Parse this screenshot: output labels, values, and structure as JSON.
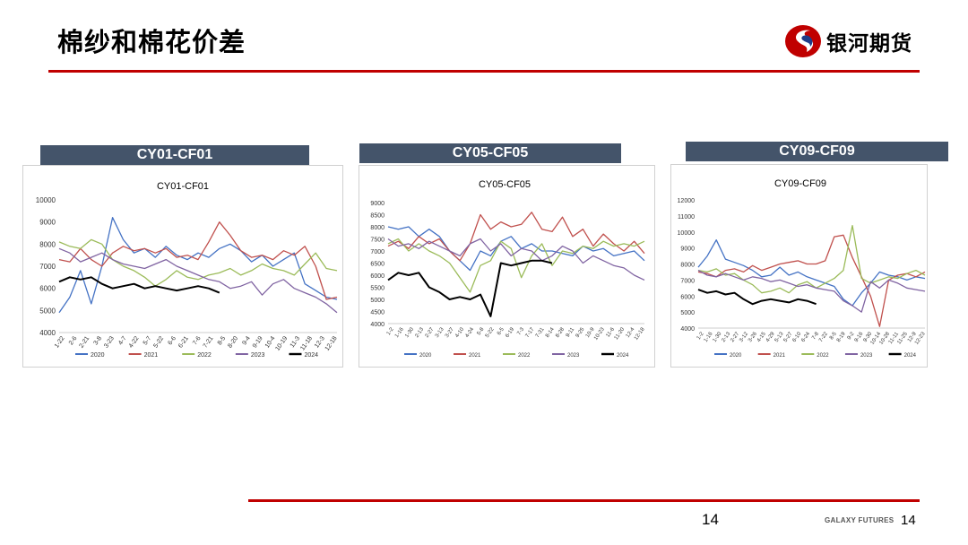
{
  "title": "棉纱和棉花价差",
  "logo": {
    "name": "银河期货",
    "icon": "galaxy-futures-logo-icon",
    "colors": [
      "#c00000",
      "#1f3c88"
    ]
  },
  "footer": {
    "page_number": "14",
    "brand": "GALAXY FUTURES",
    "page_number_right": "14"
  },
  "colors": {
    "accent": "#c00000",
    "header_bg": "#44546a"
  },
  "series_colors": {
    "2020": "#4472c4",
    "2021": "#c0504d",
    "2022": "#9bbb59",
    "2023": "#8064a2",
    "2024": "#000000"
  },
  "chart_data": [
    {
      "type": "line",
      "header": "CY01-CF01",
      "title": "CY01-CF01",
      "yticks": [
        "10000",
        "9000",
        "8000",
        "7000",
        "6000",
        "5000",
        "4000"
      ],
      "ylim": [
        4000,
        10000
      ],
      "xticks": [
        "1-22",
        "2-6",
        "2-21",
        "3-8",
        "3-23",
        "4-7",
        "4-22",
        "5-7",
        "5-22",
        "6-6",
        "6-21",
        "7-6",
        "7-21",
        "8-5",
        "8-20",
        "9-4",
        "9-19",
        "10-4",
        "10-19",
        "11-3",
        "11-18",
        "12-3",
        "12-18"
      ],
      "series": [
        {
          "name": "2020",
          "values": [
            4900,
            5600,
            6800,
            5300,
            7000,
            9200,
            8200,
            7600,
            7800,
            7400,
            7900,
            7500,
            7300,
            7600,
            7400,
            7800,
            8000,
            7700,
            7200,
            7500,
            7000,
            7300,
            7600,
            6200,
            5900,
            5600,
            5500
          ]
        },
        {
          "name": "2021",
          "values": [
            7300,
            7200,
            7800,
            7300,
            7000,
            7600,
            7900,
            7700,
            7800,
            7600,
            7800,
            7400,
            7500,
            7300,
            8100,
            9000,
            8400,
            7700,
            7400,
            7500,
            7300,
            7700,
            7500,
            7900,
            7000,
            5500,
            5600
          ]
        },
        {
          "name": "2022",
          "values": [
            8100,
            7900,
            7800,
            8200,
            8000,
            7300,
            7000,
            6800,
            6500,
            6100,
            6400,
            6800,
            6500,
            6400,
            6600,
            6700,
            6900,
            6600,
            6800,
            7100,
            6900,
            6800,
            6600,
            7100,
            7600,
            6900,
            6800
          ]
        },
        {
          "name": "2023",
          "values": [
            7800,
            7600,
            7200,
            7400,
            7600,
            7300,
            7100,
            7000,
            6900,
            7100,
            7300,
            7000,
            6800,
            6600,
            6400,
            6300,
            6000,
            6100,
            6300,
            5700,
            6200,
            6400,
            6000,
            5800,
            5600,
            5300,
            4900
          ]
        },
        {
          "name": "2024",
          "values": [
            6300,
            6500,
            6400,
            6500,
            6200,
            6000,
            6100,
            6200,
            6000,
            6100,
            6000,
            5900,
            6000,
            6100,
            6000,
            5800
          ]
        }
      ]
    },
    {
      "type": "line",
      "header": "CY05-CF05",
      "title": "CY05-CF05",
      "yticks": [
        "9000",
        "8500",
        "8000",
        "7500",
        "7000",
        "6500",
        "6000",
        "5500",
        "5000",
        "4500",
        "4000"
      ],
      "ylim": [
        4000,
        9000
      ],
      "xticks": [
        "1-2",
        "1-16",
        "1-30",
        "2-13",
        "2-27",
        "3-13",
        "3-27",
        "4-10",
        "4-24",
        "5-8",
        "5-22",
        "6-5",
        "6-19",
        "7-3",
        "7-17",
        "7-31",
        "8-14",
        "8-28",
        "9-11",
        "9-25",
        "10-9",
        "10-23",
        "11-6",
        "11-20",
        "12-4",
        "12-18"
      ],
      "series": [
        {
          "name": "2020",
          "values": [
            8000,
            7900,
            8000,
            7600,
            7900,
            7600,
            7000,
            6600,
            6200,
            7000,
            6800,
            7400,
            7600,
            7100,
            7300,
            7000,
            7000,
            6900,
            6800,
            7200,
            7000,
            7100,
            6800,
            6900,
            7000,
            6600
          ]
        },
        {
          "name": "2021",
          "values": [
            7200,
            7400,
            7100,
            7600,
            7300,
            7500,
            7000,
            6600,
            7300,
            8500,
            7900,
            8200,
            8000,
            8100,
            8600,
            7900,
            7800,
            8400,
            7600,
            7900,
            7200,
            7700,
            7300,
            7000,
            7400,
            6900
          ]
        },
        {
          "name": "2022",
          "values": [
            7300,
            7500,
            7000,
            7300,
            7000,
            6800,
            6500,
            5900,
            5300,
            6400,
            6600,
            7400,
            7100,
            5900,
            6800,
            7300,
            6400,
            7000,
            6900,
            7200,
            7100,
            7400,
            7200,
            7300,
            7200,
            7400
          ]
        },
        {
          "name": "2023",
          "values": [
            7500,
            7200,
            7300,
            7100,
            7400,
            7200,
            7000,
            6800,
            7300,
            7500,
            7000,
            7300,
            6800,
            7100,
            7000,
            6600,
            6800,
            7200,
            7000,
            6500,
            6800,
            6600,
            6400,
            6300,
            6000,
            5800
          ]
        },
        {
          "name": "2024",
          "values": [
            5800,
            6100,
            6000,
            6100,
            5500,
            5300,
            5000,
            5100,
            5000,
            5200,
            4300,
            6500,
            6400,
            6500,
            6600,
            6600,
            6500
          ]
        }
      ]
    },
    {
      "type": "line",
      "header": "CY09-CF09",
      "title": "CY09-CF09",
      "yticks": [
        "12000",
        "11000",
        "10000",
        "9000",
        "8000",
        "7000",
        "6000",
        "5000",
        "4000"
      ],
      "ylim": [
        4000,
        12000
      ],
      "xticks": [
        "1-2",
        "1-16",
        "1-30",
        "2-13",
        "2-27",
        "3-12",
        "3-26",
        "4-15",
        "4-29",
        "5-13",
        "5-27",
        "6-10",
        "6-24",
        "7-8",
        "7-22",
        "8-5",
        "8-19",
        "9-2",
        "9-16",
        "9-30",
        "10-14",
        "10-28",
        "11-11",
        "11-25",
        "12-9",
        "12-23"
      ],
      "series": [
        {
          "name": "2020",
          "values": [
            7800,
            8500,
            9500,
            8300,
            8100,
            7900,
            7600,
            7200,
            7300,
            7800,
            7300,
            7500,
            7200,
            7000,
            6800,
            6600,
            5800,
            5400,
            6200,
            6800,
            7500,
            7300,
            7200,
            7000,
            7200,
            7100
          ]
        },
        {
          "name": "2021",
          "values": [
            7500,
            7400,
            7200,
            7600,
            7700,
            7500,
            7900,
            7600,
            7800,
            8000,
            8100,
            8200,
            8000,
            8000,
            8200,
            9700,
            9800,
            8400,
            7200,
            6000,
            4100,
            7000,
            7300,
            7400,
            7200,
            7500
          ]
        },
        {
          "name": "2022",
          "values": [
            7600,
            7500,
            7700,
            7300,
            7400,
            7000,
            6700,
            6200,
            6300,
            6500,
            6200,
            6700,
            6900,
            6500,
            6800,
            7100,
            7600,
            10400,
            7100,
            6800,
            7000,
            7200,
            7100,
            7400,
            7600,
            7300
          ]
        },
        {
          "name": "2023",
          "values": [
            7600,
            7300,
            7200,
            7400,
            7200,
            7000,
            7200,
            7100,
            6900,
            7000,
            6800,
            6600,
            6700,
            6500,
            6400,
            6300,
            5700,
            5400,
            5000,
            6900,
            6500,
            7000,
            6800,
            6500,
            6400,
            6300
          ]
        },
        {
          "name": "2024",
          "values": [
            6400,
            6200,
            6300,
            6100,
            6200,
            5800,
            5500,
            5700,
            5800,
            5700,
            5600,
            5800,
            5700,
            5500
          ]
        }
      ]
    }
  ]
}
